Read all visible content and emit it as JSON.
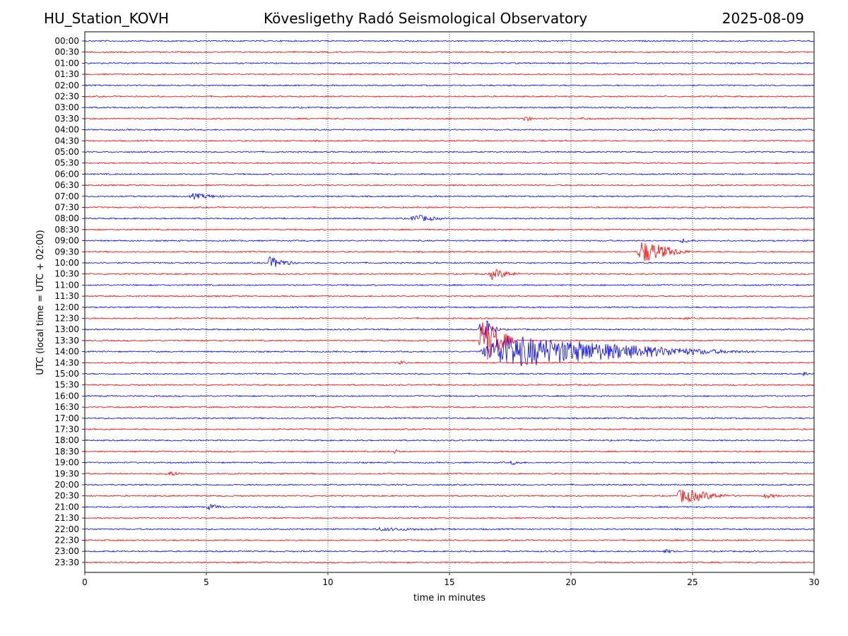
{
  "header": {
    "station": "HU_Station_KOVH",
    "title": "Kövesligethy Radó Seismological Observatory",
    "date": "2025-08-09"
  },
  "chart_data": {
    "type": "line",
    "xlabel": "time in minutes",
    "ylabel": "UTC (local time = UTC + 02:00)",
    "xlim": [
      0,
      30
    ],
    "xticks": [
      0,
      5,
      10,
      15,
      20,
      25,
      30
    ],
    "grid": "vertical dotted lines at x ticks",
    "colors": [
      "#0000ff",
      "#ff0000"
    ],
    "traces": [
      "00:00",
      "00:30",
      "01:00",
      "01:30",
      "02:00",
      "02:30",
      "03:00",
      "03:30",
      "04:00",
      "04:30",
      "05:00",
      "05:30",
      "06:00",
      "06:30",
      "07:00",
      "07:30",
      "08:00",
      "08:30",
      "09:00",
      "09:30",
      "10:00",
      "10:30",
      "11:00",
      "11:30",
      "12:00",
      "12:30",
      "13:00",
      "13:30",
      "14:00",
      "14:30",
      "15:00",
      "15:30",
      "16:00",
      "16:30",
      "17:00",
      "17:30",
      "18:00",
      "18:30",
      "19:00",
      "19:30",
      "20:00",
      "20:30",
      "21:00",
      "21:30",
      "22:00",
      "22:30",
      "23:00",
      "23:30"
    ],
    "events": [
      {
        "trace": "03:30",
        "start": 18.0,
        "duration": 0.7,
        "amplitude": 4
      },
      {
        "trace": "03:30",
        "start": 20.4,
        "duration": 0.5,
        "amplitude": 2
      },
      {
        "trace": "07:00",
        "start": 4.3,
        "duration": 1.8,
        "amplitude": 4
      },
      {
        "trace": "08:00",
        "start": 13.4,
        "duration": 1.6,
        "amplitude": 6
      },
      {
        "trace": "09:00",
        "start": 24.5,
        "duration": 0.8,
        "amplitude": 3
      },
      {
        "trace": "09:30",
        "start": 22.7,
        "duration": 2.5,
        "amplitude": 18
      },
      {
        "trace": "10:00",
        "start": 7.5,
        "duration": 1.4,
        "amplitude": 9
      },
      {
        "trace": "10:30",
        "start": 16.6,
        "duration": 1.6,
        "amplitude": 8
      },
      {
        "trace": "12:30",
        "start": 24.6,
        "duration": 0.6,
        "amplitude": 2
      },
      {
        "trace": "13:00",
        "start": 16.2,
        "duration": 1.0,
        "amplitude": 22
      },
      {
        "trace": "13:30",
        "start": 16.2,
        "duration": 1.8,
        "amplitude": 38
      },
      {
        "trace": "14:00",
        "start": 16.2,
        "duration": 12.0,
        "amplitude": 26
      },
      {
        "trace": "14:30",
        "start": 12.9,
        "duration": 0.5,
        "amplitude": 3
      },
      {
        "trace": "15:00",
        "start": 29.5,
        "duration": 0.4,
        "amplitude": 3
      },
      {
        "trace": "18:30",
        "start": 12.7,
        "duration": 0.4,
        "amplitude": 3
      },
      {
        "trace": "19:00",
        "start": 17.5,
        "duration": 0.7,
        "amplitude": 3
      },
      {
        "trace": "19:30",
        "start": 3.3,
        "duration": 0.9,
        "amplitude": 4
      },
      {
        "trace": "20:30",
        "start": 24.3,
        "duration": 2.8,
        "amplitude": 11
      },
      {
        "trace": "20:30",
        "start": 27.9,
        "duration": 1.0,
        "amplitude": 3
      },
      {
        "trace": "21:00",
        "start": 5.0,
        "duration": 1.0,
        "amplitude": 4
      },
      {
        "trace": "22:00",
        "start": 11.8,
        "duration": 4.0,
        "amplitude": 2
      },
      {
        "trace": "23:00",
        "start": 23.8,
        "duration": 0.6,
        "amplitude": 3
      }
    ]
  }
}
